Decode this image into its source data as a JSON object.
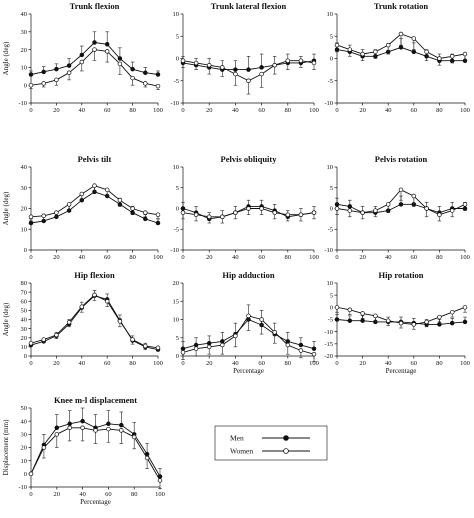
{
  "legend": {
    "entries": [
      {
        "name": "Men",
        "marker": "filled"
      },
      {
        "name": "Women",
        "marker": "open"
      }
    ]
  },
  "chart_data": [
    {
      "type": "line",
      "title": "Trunk flexion",
      "xlabel": "",
      "ylabel": "Angle (deg)",
      "xlim": [
        0,
        100
      ],
      "ylim": [
        -10,
        40
      ],
      "yticks": [
        -10,
        0,
        10,
        20,
        30,
        40
      ],
      "xticks": [
        0,
        20,
        40,
        60,
        80,
        100
      ],
      "x": [
        0,
        10,
        20,
        30,
        40,
        50,
        60,
        70,
        80,
        90,
        100
      ],
      "series": [
        {
          "name": "Men",
          "values": [
            6,
            7.5,
            9,
            11,
            17,
            24,
            23,
            15,
            9,
            7,
            6
          ],
          "errors": [
            2,
            3,
            3,
            4,
            5,
            6,
            7,
            6,
            4,
            3,
            2
          ]
        },
        {
          "name": "Women",
          "values": [
            0,
            1,
            3,
            7,
            13,
            20,
            19,
            12,
            4,
            1,
            -0.5
          ],
          "errors": [
            2,
            2,
            3,
            4,
            5,
            6,
            6,
            6,
            4,
            2,
            2
          ]
        }
      ]
    },
    {
      "type": "line",
      "title": "Trunk lateral flexion",
      "xlabel": "",
      "ylabel": "",
      "xlim": [
        0,
        100
      ],
      "ylim": [
        -10,
        10
      ],
      "yticks": [
        -10,
        -5,
        0,
        5,
        10
      ],
      "xticks": [
        0,
        20,
        40,
        60,
        80,
        100
      ],
      "x": [
        0,
        10,
        20,
        30,
        40,
        50,
        60,
        70,
        80,
        90,
        100
      ],
      "series": [
        {
          "name": "Men",
          "values": [
            -1,
            -1.5,
            -2,
            -2.5,
            -2.5,
            -2.5,
            -2,
            -1.5,
            -1,
            -1,
            -0.5
          ],
          "errors": [
            1.5,
            1.5,
            2,
            2,
            2,
            3,
            3,
            2,
            2,
            1.5,
            1.5
          ]
        },
        {
          "name": "Women",
          "values": [
            -0.5,
            -1,
            -1.5,
            -2,
            -3.5,
            -5,
            -3.5,
            -1.5,
            -0.5,
            -0.5,
            -1
          ],
          "errors": [
            1.5,
            1.5,
            2,
            2,
            2.5,
            3,
            3,
            2,
            2,
            1.5,
            1.5
          ]
        }
      ]
    },
    {
      "type": "line",
      "title": "Trunk rotation",
      "xlabel": "",
      "ylabel": "",
      "xlim": [
        0,
        100
      ],
      "ylim": [
        -10,
        10
      ],
      "yticks": [
        -10,
        -5,
        0,
        5,
        10
      ],
      "xticks": [
        0,
        20,
        40,
        60,
        80,
        100
      ],
      "x": [
        0,
        10,
        20,
        30,
        40,
        50,
        60,
        70,
        80,
        90,
        100
      ],
      "series": [
        {
          "name": "Men",
          "values": [
            2,
            1.5,
            0.5,
            0.5,
            1.5,
            2.5,
            1.5,
            0.5,
            -0.5,
            -0.5,
            -0.5
          ],
          "errors": [
            1.5,
            1.5,
            1.5,
            1.5,
            1.5,
            2,
            2,
            1.5,
            1.5,
            1.5,
            1.5
          ]
        },
        {
          "name": "Women",
          "values": [
            3,
            2,
            1,
            1.5,
            3,
            5.5,
            4.5,
            1.5,
            0,
            0.5,
            1
          ],
          "errors": [
            1.5,
            1.5,
            1.5,
            1.5,
            2,
            2.5,
            2.5,
            2,
            1.5,
            1.5,
            1.5
          ]
        }
      ]
    },
    {
      "type": "line",
      "title": "Pelvis tilt",
      "xlabel": "",
      "ylabel": "Angle (deg)",
      "xlim": [
        0,
        100
      ],
      "ylim": [
        0,
        40
      ],
      "yticks": [
        0,
        10,
        20,
        30,
        40
      ],
      "xticks": [
        0,
        20,
        40,
        60,
        80,
        100
      ],
      "x": [
        0,
        10,
        20,
        30,
        40,
        50,
        60,
        70,
        80,
        90,
        100
      ],
      "series": [
        {
          "name": "Men",
          "values": [
            13,
            14,
            16,
            19,
            24,
            28,
            26,
            22,
            18,
            15,
            13
          ],
          "errors": [
            2,
            2,
            2,
            3,
            3,
            3,
            3,
            3,
            3,
            2,
            2
          ]
        },
        {
          "name": "Women",
          "values": [
            16,
            16.5,
            18,
            22,
            27,
            31,
            29,
            24,
            20,
            18,
            17
          ],
          "errors": [
            2,
            2,
            2,
            3,
            3,
            3,
            3,
            3,
            3,
            2,
            2
          ]
        }
      ]
    },
    {
      "type": "line",
      "title": "Pelvis obliquity",
      "xlabel": "",
      "ylabel": "",
      "xlim": [
        0,
        100
      ],
      "ylim": [
        -10,
        10
      ],
      "yticks": [
        -10,
        -5,
        0,
        5,
        10
      ],
      "xticks": [
        0,
        20,
        40,
        60,
        80,
        100
      ],
      "x": [
        0,
        10,
        20,
        30,
        40,
        50,
        60,
        70,
        80,
        90,
        100
      ],
      "series": [
        {
          "name": "Men",
          "values": [
            0,
            -1,
            -2.5,
            -2,
            -1,
            0.5,
            0.5,
            -0.5,
            -2,
            -1.5,
            -1
          ],
          "errors": [
            1.5,
            1.5,
            1.5,
            1.5,
            1.5,
            1.5,
            1.5,
            1.5,
            1.5,
            1.5,
            1.5
          ]
        },
        {
          "name": "Women",
          "values": [
            -1,
            -1.5,
            -2,
            -2,
            -1,
            0,
            0,
            -1,
            -1.5,
            -1.5,
            -1
          ],
          "errors": [
            1.5,
            1.5,
            1.5,
            1.5,
            1.5,
            1.5,
            1.5,
            1.5,
            1.5,
            1.5,
            1.5
          ]
        }
      ]
    },
    {
      "type": "line",
      "title": "Pelvis rotation",
      "xlabel": "",
      "ylabel": "",
      "xlim": [
        0,
        100
      ],
      "ylim": [
        -10,
        10
      ],
      "yticks": [
        -10,
        -5,
        0,
        5,
        10
      ],
      "xticks": [
        0,
        20,
        40,
        60,
        80,
        100
      ],
      "x": [
        0,
        10,
        20,
        30,
        40,
        50,
        60,
        70,
        80,
        90,
        100
      ],
      "series": [
        {
          "name": "Men",
          "values": [
            1,
            0.5,
            -1,
            -1,
            -0.5,
            1,
            1,
            0,
            -1,
            0,
            0
          ],
          "errors": [
            1.5,
            1.5,
            1.5,
            1.5,
            1.5,
            2,
            2,
            1.5,
            1.5,
            1.5,
            1.5
          ]
        },
        {
          "name": "Women",
          "values": [
            0,
            -0.5,
            -1,
            -0.5,
            1,
            4.5,
            3,
            0,
            -1.5,
            -0.5,
            1
          ],
          "errors": [
            1.5,
            1.5,
            1.5,
            1.5,
            2,
            2.5,
            2.5,
            2,
            1.5,
            1.5,
            1.5
          ]
        }
      ]
    },
    {
      "type": "line",
      "title": "Hip flexion",
      "xlabel": "",
      "ylabel": "Angle (deg)",
      "xlim": [
        0,
        100
      ],
      "ylim": [
        0,
        80
      ],
      "yticks": [
        0,
        10,
        20,
        30,
        40,
        50,
        60,
        70,
        80
      ],
      "xticks": [
        0,
        20,
        40,
        60,
        80,
        100
      ],
      "x": [
        0,
        10,
        20,
        30,
        40,
        50,
        60,
        70,
        80,
        90,
        100
      ],
      "series": [
        {
          "name": "Men",
          "values": [
            12,
            16,
            22,
            35,
            53,
            66,
            62,
            39,
            17,
            10,
            7
          ],
          "errors": [
            3,
            3,
            4,
            5,
            6,
            6,
            6,
            6,
            5,
            4,
            3
          ]
        },
        {
          "name": "Women",
          "values": [
            14,
            18,
            23,
            37,
            54,
            67,
            60,
            38,
            18,
            11,
            9
          ],
          "errors": [
            3,
            3,
            4,
            5,
            6,
            6,
            6,
            6,
            5,
            4,
            3
          ]
        }
      ]
    },
    {
      "type": "line",
      "title": "Hip adduction",
      "xlabel": "Percentage",
      "ylabel": "",
      "xlim": [
        0,
        100
      ],
      "ylim": [
        0,
        20
      ],
      "yticks": [
        0,
        5,
        10,
        15,
        20
      ],
      "xticks": [
        0,
        20,
        40,
        60,
        80,
        100
      ],
      "x": [
        0,
        10,
        20,
        30,
        40,
        50,
        60,
        70,
        80,
        90,
        100
      ],
      "series": [
        {
          "name": "Men",
          "values": [
            2,
            3,
            3.5,
            4,
            6,
            10,
            8.5,
            6,
            4,
            3,
            2
          ],
          "errors": [
            2,
            2,
            2,
            2.5,
            3,
            4,
            4,
            3,
            2.5,
            2,
            2
          ]
        },
        {
          "name": "Women",
          "values": [
            1,
            2,
            2.5,
            3,
            5.5,
            11,
            10,
            6.5,
            3,
            1.5,
            0.5
          ],
          "errors": [
            2,
            2,
            2,
            2.5,
            3,
            4,
            4,
            3,
            2.5,
            2,
            2
          ]
        }
      ]
    },
    {
      "type": "line",
      "title": "Hip rotation",
      "xlabel": "Percentage",
      "ylabel": "",
      "xlim": [
        0,
        100
      ],
      "ylim": [
        -20,
        10
      ],
      "yticks": [
        -20,
        -15,
        -10,
        -5,
        0,
        5,
        10
      ],
      "xticks": [
        0,
        20,
        40,
        60,
        80,
        100
      ],
      "x": [
        0,
        10,
        20,
        30,
        40,
        50,
        60,
        70,
        80,
        90,
        100
      ],
      "series": [
        {
          "name": "Men",
          "values": [
            -5,
            -5.5,
            -5.5,
            -6,
            -6,
            -6,
            -6.5,
            -7,
            -7,
            -6.5,
            -6
          ],
          "errors": [
            2,
            2,
            2,
            2,
            2,
            2,
            2,
            2,
            2,
            2,
            2
          ]
        },
        {
          "name": "Women",
          "values": [
            0,
            -1,
            -2.5,
            -3.5,
            -5.5,
            -6.5,
            -7,
            -6,
            -4,
            -2,
            0
          ],
          "errors": [
            2,
            2,
            2,
            2,
            2,
            2,
            2,
            2,
            2,
            2,
            2
          ]
        }
      ]
    },
    {
      "type": "line",
      "title": "Knee m-l displacement",
      "xlabel": "Percentage",
      "ylabel": "Displacement (mm)",
      "xlim": [
        0,
        100
      ],
      "ylim": [
        -10,
        50
      ],
      "yticks": [
        -10,
        0,
        10,
        20,
        30,
        40,
        50
      ],
      "xticks": [
        0,
        20,
        40,
        60,
        80,
        100
      ],
      "x": [
        0,
        10,
        20,
        30,
        40,
        50,
        60,
        70,
        80,
        90,
        100
      ],
      "series": [
        {
          "name": "Men",
          "values": [
            0,
            22,
            35,
            38,
            40,
            35,
            38,
            37,
            30,
            15,
            -2
          ],
          "errors": [
            0,
            8,
            10,
            10,
            10,
            10,
            10,
            10,
            9,
            8,
            6
          ]
        },
        {
          "name": "Women",
          "values": [
            0,
            20,
            30,
            35,
            35,
            33,
            34,
            33,
            28,
            12,
            -5
          ],
          "errors": [
            0,
            8,
            10,
            10,
            10,
            10,
            10,
            10,
            9,
            8,
            6
          ]
        }
      ]
    }
  ]
}
